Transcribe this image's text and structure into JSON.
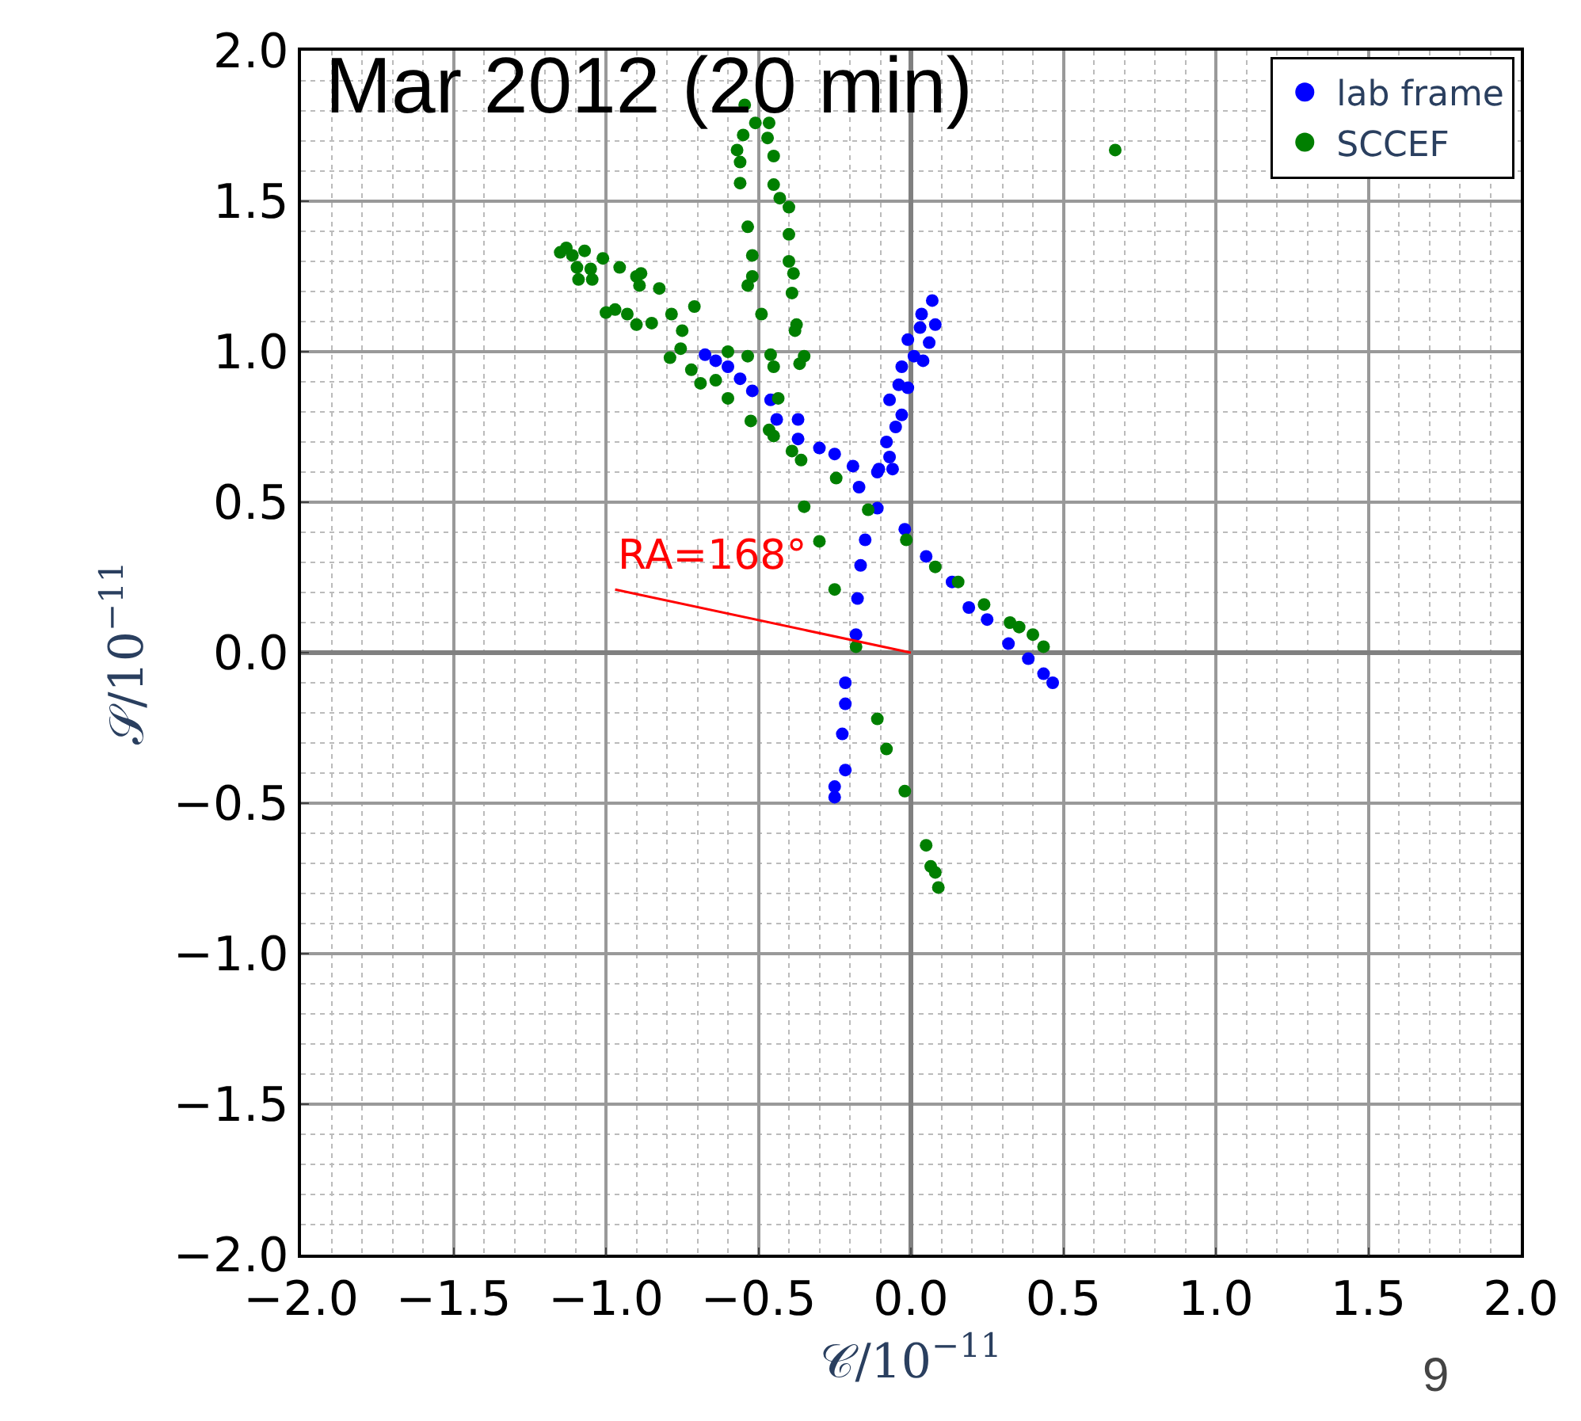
{
  "chart_data": {
    "type": "scatter",
    "title": "Mar 2012 (20 min)",
    "xlabel": "𝒞/10$^{−11}$",
    "ylabel": "𝒮/10$^{−11}$",
    "xlim": [
      -2.0,
      2.0
    ],
    "ylim": [
      -2.0,
      2.0
    ],
    "xticks": [
      {
        "value": -2.0,
        "label": "−2.0"
      },
      {
        "value": -1.5,
        "label": "−1.5"
      },
      {
        "value": -1.0,
        "label": "−1.0"
      },
      {
        "value": -0.5,
        "label": "−0.5"
      },
      {
        "value": 0.0,
        "label": "0.0"
      },
      {
        "value": 0.5,
        "label": "0.5"
      },
      {
        "value": 1.0,
        "label": "1.0"
      },
      {
        "value": 1.5,
        "label": "1.5"
      },
      {
        "value": 2.0,
        "label": "2.0"
      }
    ],
    "yticks": [
      {
        "value": -2.0,
        "label": "−2.0"
      },
      {
        "value": -1.5,
        "label": "−1.5"
      },
      {
        "value": -1.0,
        "label": "−1.0"
      },
      {
        "value": -0.5,
        "label": "−0.5"
      },
      {
        "value": 0.0,
        "label": "0.0"
      },
      {
        "value": 0.5,
        "label": "0.5"
      },
      {
        "value": 1.0,
        "label": "1.0"
      },
      {
        "value": 1.5,
        "label": "1.5"
      },
      {
        "value": 2.0,
        "label": "2.0"
      }
    ],
    "grid": true,
    "legend": "top right",
    "marker": "circle",
    "series": [
      {
        "name": "lab frame",
        "color": "#0000ff",
        "x": [
          0.07,
          0.035,
          0.08,
          0.03,
          -0.01,
          0.06,
          0.01,
          -0.03,
          0.04,
          -0.01,
          -0.04,
          -0.07,
          -0.03,
          -0.05,
          -0.08,
          -0.07,
          -0.105,
          -0.06,
          -0.11,
          -0.675,
          -0.64,
          -0.6,
          -0.56,
          -0.52,
          -0.46,
          -0.44,
          -0.37,
          -0.37,
          -0.3,
          -0.25,
          -0.19,
          -0.17,
          -0.11,
          -0.02,
          0.05,
          0.135,
          0.19,
          0.25,
          0.32,
          0.385,
          0.435,
          0.465,
          -0.15,
          -0.165,
          -0.175,
          -0.18,
          -0.215,
          -0.215,
          -0.225,
          -0.215,
          -0.25,
          -0.25
        ],
        "values": [
          1.17,
          1.125,
          1.09,
          1.08,
          1.04,
          1.03,
          0.985,
          0.95,
          0.97,
          0.88,
          0.89,
          0.84,
          0.79,
          0.75,
          0.7,
          0.65,
          0.61,
          0.61,
          0.6,
          0.99,
          0.97,
          0.95,
          0.91,
          0.87,
          0.84,
          0.775,
          0.775,
          0.71,
          0.68,
          0.66,
          0.62,
          0.55,
          0.48,
          0.41,
          0.32,
          0.235,
          0.15,
          0.11,
          0.03,
          -0.02,
          -0.07,
          -0.1,
          0.375,
          0.29,
          0.18,
          0.06,
          -0.1,
          -0.17,
          -0.27,
          -0.39,
          -0.445,
          -0.48
        ]
      },
      {
        "name": "SCCEF",
        "color": "#007f00",
        "x": [
          -0.545,
          -0.51,
          -0.465,
          -0.55,
          -0.47,
          -0.57,
          -0.45,
          -0.56,
          -0.56,
          -0.45,
          -0.43,
          -0.4,
          -0.535,
          -0.4,
          -0.52,
          -0.4,
          -0.385,
          -0.52,
          -0.535,
          -0.39,
          -0.49,
          -0.375,
          -0.38,
          -0.35,
          -0.365,
          -0.46,
          -0.45,
          -0.435,
          -0.465,
          -0.45,
          -0.39,
          -0.36,
          -0.245,
          -1.13,
          -1.15,
          -1.11,
          -1.07,
          -1.095,
          -1.05,
          -1.09,
          -1.045,
          -1.01,
          -0.955,
          -0.9,
          -0.885,
          -0.89,
          -0.825,
          -1.0,
          -0.97,
          -0.93,
          -0.9,
          -0.85,
          -0.785,
          -0.71,
          -0.75,
          -0.755,
          -0.79,
          -0.72,
          -0.69,
          -0.64,
          -0.6,
          -0.535,
          -0.6,
          -0.525,
          -0.35,
          -0.14,
          -0.3,
          -0.015,
          0.08,
          0.155,
          0.24,
          0.325,
          0.355,
          0.4,
          0.435,
          -0.25,
          -0.18,
          -0.11,
          -0.08,
          -0.02,
          0.05,
          0.065,
          0.08,
          0.09,
          0.67
        ],
        "values": [
          1.82,
          1.76,
          1.76,
          1.72,
          1.71,
          1.67,
          1.65,
          1.63,
          1.56,
          1.555,
          1.51,
          1.48,
          1.415,
          1.39,
          1.32,
          1.3,
          1.26,
          1.25,
          1.22,
          1.195,
          1.125,
          1.09,
          1.07,
          0.985,
          0.96,
          0.99,
          0.95,
          0.845,
          0.74,
          0.72,
          0.67,
          0.64,
          0.58,
          1.345,
          1.33,
          1.32,
          1.335,
          1.28,
          1.275,
          1.24,
          1.24,
          1.31,
          1.28,
          1.25,
          1.26,
          1.22,
          1.21,
          1.13,
          1.14,
          1.125,
          1.09,
          1.095,
          1.125,
          1.15,
          1.07,
          1.01,
          0.98,
          0.94,
          0.895,
          0.905,
          1.0,
          0.985,
          0.845,
          0.77,
          0.485,
          0.475,
          0.37,
          0.375,
          0.285,
          0.235,
          0.16,
          0.1,
          0.085,
          0.06,
          0.02,
          0.21,
          0.02,
          -0.22,
          -0.32,
          -0.46,
          -0.64,
          -0.71,
          -0.73,
          -0.78,
          1.67
        ]
      },
      {
        "type": "line",
        "marker": "none",
        "color": "#ff0000",
        "x": [
          -0.97,
          0.0
        ],
        "values": [
          0.21,
          0.0
        ]
      }
    ],
    "annotations": [
      {
        "text": "RA=168°",
        "x": -0.97,
        "y": 0.23
      },
      "9"
    ]
  }
}
